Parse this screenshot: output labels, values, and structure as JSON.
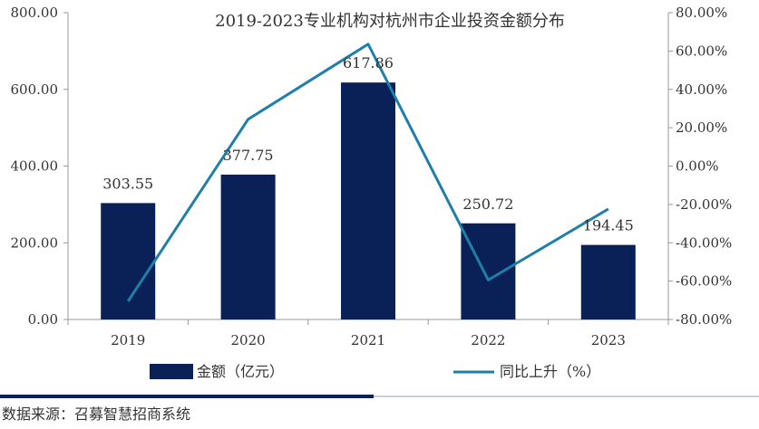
{
  "chart_data": {
    "type": "bar+line",
    "title": "2019-2023专业机构对杭州市企业投资金额分布",
    "categories": [
      "2019",
      "2020",
      "2021",
      "2022",
      "2023"
    ],
    "series": [
      {
        "name": "金额（亿元）",
        "type": "bar",
        "axis": "left",
        "values": [
          303.55,
          377.75,
          617.86,
          250.72,
          194.45
        ],
        "value_labels": [
          "303.55",
          "377.75",
          "617.86",
          "250.72",
          "194.45"
        ],
        "color": "#0a2158"
      },
      {
        "name": "同比上升（%）",
        "type": "line",
        "axis": "right",
        "values": [
          -70.5,
          24.4,
          63.6,
          -59.4,
          -22.4
        ],
        "color": "#1f7fa8"
      }
    ],
    "y_left": {
      "ylim": [
        0,
        800
      ],
      "ticks": [
        0,
        200,
        400,
        600,
        800
      ],
      "tick_labels": [
        "0.00",
        "200.00",
        "400.00",
        "600.00",
        "800.00"
      ]
    },
    "y_right": {
      "ylim": [
        -80,
        80
      ],
      "ticks": [
        -80,
        -60,
        -40,
        -20,
        0,
        20,
        40,
        60,
        80
      ],
      "tick_labels": [
        "-80.00%",
        "-60.00%",
        "-40.00%",
        "-20.00%",
        "0.00%",
        "20.00%",
        "40.00%",
        "60.00%",
        "80.00%"
      ]
    },
    "legend_position": "bottom",
    "grid": false
  },
  "source": "数据来源：召募智慧招商系统",
  "colors": {
    "bar": "#0a2158",
    "line": "#1f7fa8",
    "axis": "#999999",
    "footer_rule": "#0a2158"
  }
}
